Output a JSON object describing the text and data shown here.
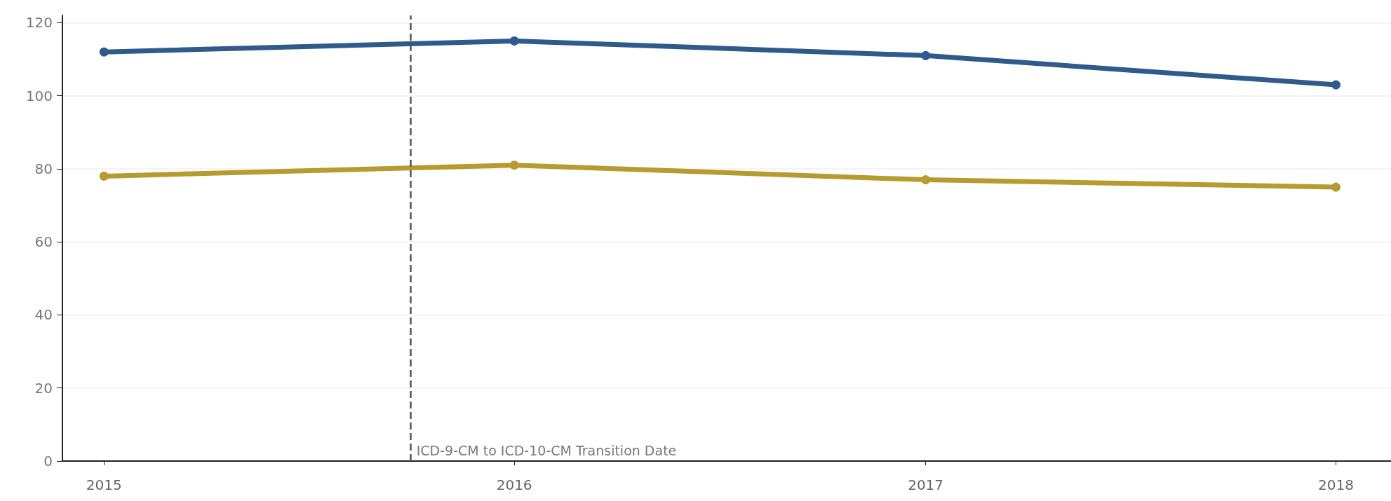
{
  "chart_data": {
    "type": "line",
    "x": [
      "2015",
      "2016",
      "2017",
      "2018"
    ],
    "series": [
      {
        "color": "#2e5b8c",
        "values": [
          112,
          115,
          111,
          103
        ]
      },
      {
        "color": "#b89b30",
        "values": [
          78,
          81,
          77,
          75
        ]
      }
    ],
    "xlim": [
      "2014-11-25",
      "2018-02-19"
    ],
    "xticks": [
      {
        "value": "2015",
        "label": "2015"
      },
      {
        "value": "2016",
        "label": "2016"
      },
      {
        "value": "2017",
        "label": "2017"
      },
      {
        "value": "2018",
        "label": "2018"
      }
    ],
    "ylim": [
      0,
      122
    ],
    "yticks": [
      0,
      20,
      40,
      60,
      80,
      100,
      120
    ],
    "ref_lines": [
      {
        "axis": "x",
        "value": "2015-10-01",
        "label": "ICD-9-CM to ICD-10-CM Transition Date",
        "color": "#555555",
        "line_style": "dashed"
      }
    ],
    "grid": "y",
    "marker": "circle",
    "line_style": "solid"
  }
}
